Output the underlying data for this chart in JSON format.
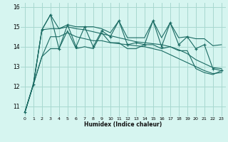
{
  "xlabel": "Humidex (Indice chaleur)",
  "background_color": "#d6f5f0",
  "line_color": "#1a6b63",
  "grid_color": "#a8d8d0",
  "xlim": [
    -0.5,
    23.5
  ],
  "ylim": [
    10.5,
    16.2
  ],
  "yticks": [
    11,
    12,
    13,
    14,
    15,
    16
  ],
  "xticks": [
    0,
    1,
    2,
    3,
    4,
    5,
    6,
    7,
    8,
    9,
    10,
    11,
    12,
    13,
    14,
    15,
    16,
    17,
    18,
    19,
    20,
    21,
    22,
    23
  ],
  "hours": [
    0,
    1,
    2,
    3,
    4,
    5,
    6,
    7,
    8,
    9,
    10,
    11,
    12,
    13,
    14,
    15,
    16,
    17,
    18,
    19,
    20,
    21,
    22,
    23
  ],
  "zigzag_values": [
    10.7,
    12.1,
    14.85,
    15.6,
    13.9,
    15.1,
    14.0,
    15.0,
    14.0,
    14.8,
    14.5,
    15.3,
    14.1,
    14.2,
    14.1,
    15.3,
    14.0,
    15.2,
    14.1,
    14.5,
    13.9,
    14.1,
    12.9,
    12.8
  ],
  "upper_envelope": [
    10.7,
    12.1,
    14.85,
    15.6,
    14.9,
    15.1,
    15.0,
    15.0,
    15.0,
    14.9,
    14.7,
    15.3,
    14.45,
    14.45,
    14.45,
    15.3,
    14.45,
    15.2,
    14.45,
    14.5,
    14.4,
    14.4,
    14.05,
    14.1
  ],
  "lower_envelope": [
    10.7,
    12.1,
    13.5,
    13.9,
    13.9,
    14.8,
    13.9,
    14.0,
    13.9,
    14.7,
    14.2,
    14.2,
    13.9,
    13.9,
    14.1,
    14.1,
    13.9,
    14.0,
    13.8,
    13.8,
    12.9,
    12.7,
    12.6,
    12.8
  ],
  "trend_upper": [
    10.7,
    12.1,
    14.85,
    14.9,
    14.9,
    15.0,
    14.9,
    14.85,
    14.75,
    14.65,
    14.55,
    14.45,
    14.35,
    14.25,
    14.2,
    14.15,
    14.1,
    14.0,
    13.85,
    13.65,
    13.35,
    13.15,
    12.95,
    12.9
  ],
  "trend_lower": [
    10.7,
    12.1,
    13.5,
    14.5,
    14.5,
    14.7,
    14.5,
    14.4,
    14.3,
    14.3,
    14.2,
    14.15,
    14.1,
    14.05,
    14.0,
    13.9,
    13.8,
    13.6,
    13.4,
    13.2,
    13.0,
    12.8,
    12.65,
    12.7
  ]
}
